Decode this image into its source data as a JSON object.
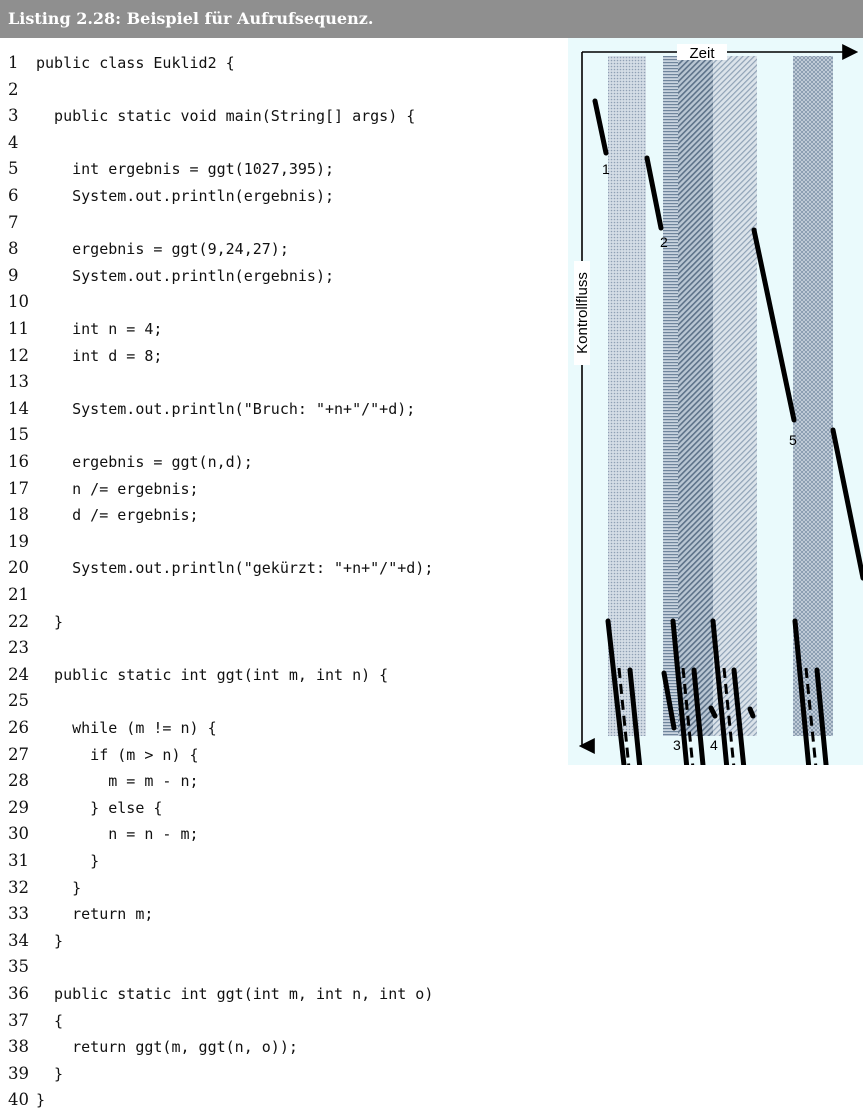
{
  "listing_title": "Listing 2.28: Beispiel für Aufrufsequenz.",
  "code_lines": [
    {
      "n": "1",
      "text": "public class Euklid2 {"
    },
    {
      "n": "2",
      "text": ""
    },
    {
      "n": "3",
      "text": "  public static void main(String[] args) {"
    },
    {
      "n": "4",
      "text": ""
    },
    {
      "n": "5",
      "text": "    int ergebnis = ggt(1027,395);"
    },
    {
      "n": "6",
      "text": "    System.out.println(ergebnis);"
    },
    {
      "n": "7",
      "text": ""
    },
    {
      "n": "8",
      "text": "    ergebnis = ggt(9,24,27);"
    },
    {
      "n": "9",
      "text": "    System.out.println(ergebnis);"
    },
    {
      "n": "10",
      "text": ""
    },
    {
      "n": "11",
      "text": "    int n = 4;"
    },
    {
      "n": "12",
      "text": "    int d = 8;"
    },
    {
      "n": "13",
      "text": ""
    },
    {
      "n": "14",
      "text": "    System.out.println(\"Bruch: \"+n+\"/\"+d);"
    },
    {
      "n": "15",
      "text": ""
    },
    {
      "n": "16",
      "text": "    ergebnis = ggt(n,d);"
    },
    {
      "n": "17",
      "text": "    n /= ergebnis;"
    },
    {
      "n": "18",
      "text": "    d /= ergebnis;"
    },
    {
      "n": "19",
      "text": ""
    },
    {
      "n": "20",
      "text": "    System.out.println(\"gekürzt: \"+n+\"/\"+d);"
    },
    {
      "n": "21",
      "text": ""
    },
    {
      "n": "22",
      "text": "  }"
    },
    {
      "n": "23",
      "text": ""
    },
    {
      "n": "24",
      "text": "  public static int ggt(int m, int n) {"
    },
    {
      "n": "25",
      "text": ""
    },
    {
      "n": "26",
      "text": "    while (m != n) {"
    },
    {
      "n": "27",
      "text": "      if (m > n) {"
    },
    {
      "n": "28",
      "text": "        m = m - n;"
    },
    {
      "n": "29",
      "text": "      } else {"
    },
    {
      "n": "30",
      "text": "        n = n - m;"
    },
    {
      "n": "31",
      "text": "      }"
    },
    {
      "n": "32",
      "text": "    }"
    },
    {
      "n": "33",
      "text": "    return m;"
    },
    {
      "n": "34",
      "text": "  }"
    },
    {
      "n": "35",
      "text": ""
    },
    {
      "n": "36",
      "text": "  public static int ggt(int m, int n, int o)"
    },
    {
      "n": "37",
      "text": "  {"
    },
    {
      "n": "38",
      "text": "    return ggt(m, ggt(n, o));"
    },
    {
      "n": "39",
      "text": "  }"
    },
    {
      "n": "40",
      "text": "}"
    }
  ],
  "figure": {
    "time_axis_label": "Zeit",
    "flow_axis_label": "Kontrollfluss",
    "call_labels": [
      "1",
      "2",
      "3",
      "4",
      "5"
    ],
    "background_color": "#eafafc"
  }
}
